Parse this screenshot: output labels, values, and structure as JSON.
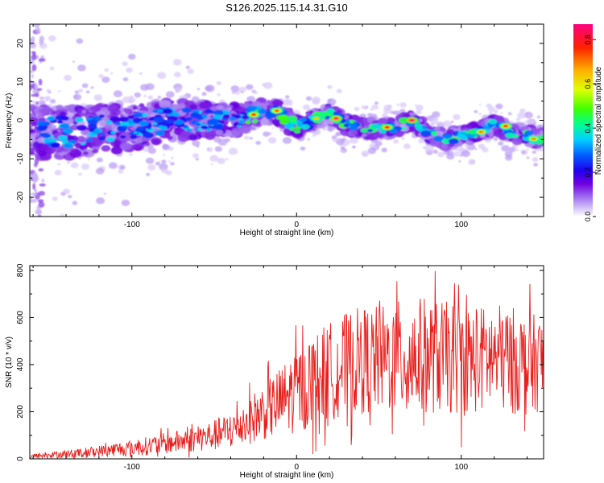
{
  "figure": {
    "title": "S126.2025.115.14.31.G10"
  },
  "chart_data": [
    {
      "type": "heatmap",
      "title": "S126.2025.115.14.31.G10",
      "xlabel": "Height of straight line (km)",
      "ylabel": "Frequency (Hz)",
      "xlim": [
        -162,
        150
      ],
      "ylim": [
        -25,
        25
      ],
      "x_ticks": [
        -100,
        0,
        100
      ],
      "x_tick_labels": [
        "-100",
        "0",
        "100"
      ],
      "y_ticks": [
        -20,
        -10,
        0,
        10,
        20
      ],
      "y_tick_labels": [
        "-20",
        "-10",
        "0",
        "10",
        "20"
      ],
      "colorbar": {
        "label": "Normalized spectral amplitude",
        "range": [
          0,
          0.87
        ],
        "ticks": [
          0.0,
          0.2,
          0.4,
          0.6,
          0.8
        ],
        "tick_labels": [
          "0.0",
          "0.2",
          "0.4",
          "0.6",
          "0.8"
        ],
        "colormap": [
          "#ffffff",
          "#d8c8f8",
          "#a070f0",
          "#7000e0",
          "#2000f0",
          "#0060ff",
          "#00d0ff",
          "#00ff90",
          "#40ff00",
          "#e0ff00",
          "#ffb000",
          "#ff2000",
          "#ff0080"
        ]
      },
      "ridge": {
        "x": [
          -160,
          -140,
          -120,
          -100,
          -80,
          -60,
          -40,
          -20,
          -10,
          0,
          10,
          20,
          30,
          40,
          50,
          60,
          70,
          80,
          90,
          100,
          110,
          120,
          130,
          140,
          148
        ],
        "y": [
          -3,
          -3,
          -2,
          -2,
          0,
          0,
          0,
          2,
          2,
          -2,
          0,
          2,
          -1,
          -2,
          -2,
          -2,
          0,
          -3,
          -5,
          -4,
          -3,
          -1,
          -3,
          -4,
          -5
        ]
      },
      "hotspots": [
        {
          "x": -26,
          "y": 1.5,
          "v": 0.8
        },
        {
          "x": -12,
          "y": 2.5,
          "v": 0.78
        },
        {
          "x": 12,
          "y": 0.5,
          "v": 0.7
        },
        {
          "x": 24,
          "y": 0.5,
          "v": 0.85
        },
        {
          "x": 55,
          "y": -1.8,
          "v": 0.82
        },
        {
          "x": 70,
          "y": 0,
          "v": 0.87
        },
        {
          "x": 112,
          "y": -3,
          "v": 0.75
        },
        {
          "x": 127,
          "y": -1.5,
          "v": 0.8
        },
        {
          "x": 144,
          "y": -4.8,
          "v": 0.75
        }
      ]
    },
    {
      "type": "line",
      "xlabel": "Height of straight line (km)",
      "ylabel": "SNR (10 * v/v)",
      "xlim": [
        -162,
        150
      ],
      "ylim": [
        0,
        820
      ],
      "x_ticks": [
        -100,
        0,
        100
      ],
      "x_tick_labels": [
        "-100",
        "0",
        "100"
      ],
      "y_ticks": [
        0,
        200,
        400,
        600,
        800
      ],
      "y_tick_labels": [
        "0",
        "200",
        "400",
        "600",
        "800"
      ],
      "color": "#e8201c",
      "envelope": {
        "x": [
          -162,
          -130,
          -110,
          -90,
          -70,
          -50,
          -40,
          -30,
          -20,
          -10,
          0,
          10,
          20,
          30,
          40,
          50,
          60,
          70,
          80,
          90,
          100,
          110,
          120,
          130,
          140,
          150
        ],
        "mean": [
          10,
          25,
          40,
          55,
          75,
          100,
          120,
          160,
          200,
          240,
          290,
          330,
          370,
          400,
          420,
          420,
          430,
          430,
          440,
          430,
          420,
          420,
          430,
          420,
          400,
          410
        ],
        "spread": [
          10,
          20,
          30,
          40,
          50,
          65,
          80,
          100,
          120,
          150,
          180,
          200,
          210,
          220,
          230,
          230,
          240,
          250,
          250,
          240,
          240,
          230,
          230,
          230,
          220,
          200
        ]
      }
    }
  ]
}
